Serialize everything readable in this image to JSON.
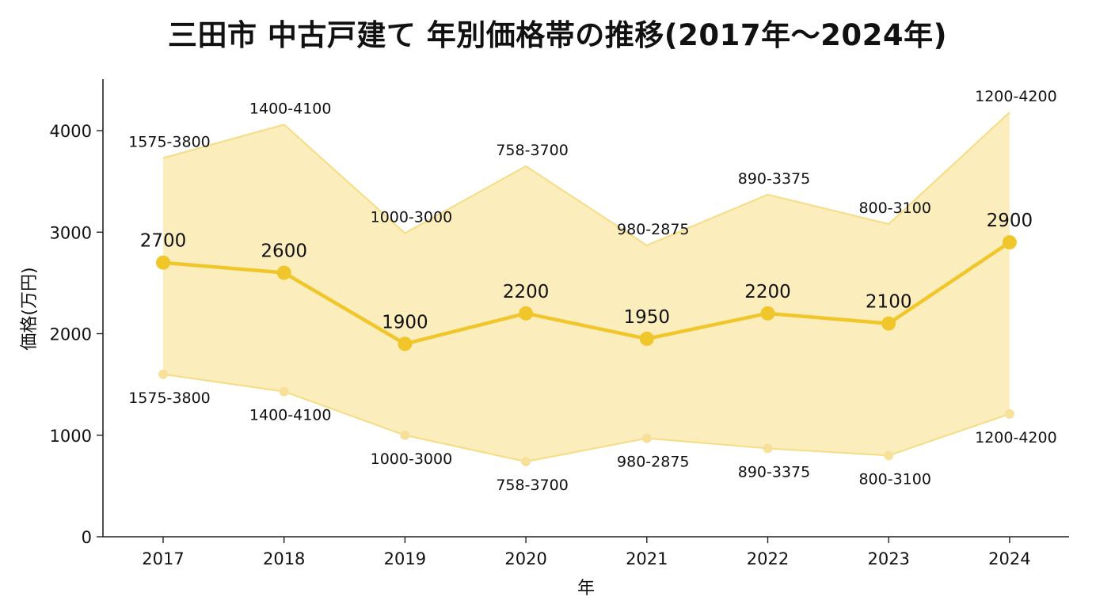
{
  "chart_data": {
    "type": "line",
    "title": "三田市 中古戸建て 年別価格帯の推移(2017年～2024年)",
    "xlabel": "年",
    "ylabel": "価格(万円)",
    "ylim": [
      0,
      4500
    ],
    "yticks": [
      0,
      1000,
      2000,
      3000,
      4000
    ],
    "grid": false,
    "categories": [
      "2017",
      "2018",
      "2019",
      "2020",
      "2021",
      "2022",
      "2023",
      "2024"
    ],
    "series": [
      {
        "values": [
          2700,
          2600,
          1900,
          2200,
          1950,
          2200,
          2100,
          2900
        ],
        "color": "#F0C62A"
      }
    ],
    "band": {
      "low": [
        1600,
        1430,
        1000,
        740,
        970,
        870,
        800,
        1210
      ],
      "high": [
        3730,
        4060,
        2990,
        3650,
        2870,
        3370,
        3080,
        4180
      ],
      "color": "#FBE7A6"
    },
    "range_labels": [
      "1575-3800",
      "1400-4100",
      "1000-3000",
      "758-3700",
      "980-2875",
      "890-3375",
      "800-3100",
      "1200-4200"
    ],
    "value_labels": [
      "2700",
      "2600",
      "1900",
      "2200",
      "1950",
      "2200",
      "2100",
      "2900"
    ]
  }
}
